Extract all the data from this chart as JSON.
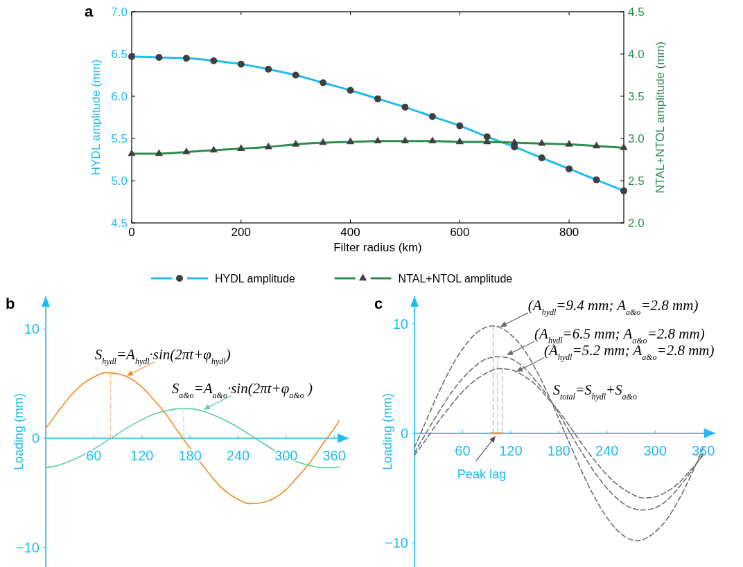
{
  "chart_data": [
    {
      "type": "line",
      "title": "a",
      "xlabel": "Filter radius (km)",
      "ylabel": "HYDL amplitude (mm)",
      "y2label": "NTAL+NTOL amplitude (mm)",
      "x": [
        0,
        50,
        100,
        150,
        200,
        250,
        300,
        350,
        400,
        450,
        500,
        550,
        600,
        650,
        700,
        750,
        800,
        850,
        900
      ],
      "xlim": [
        0,
        900
      ],
      "xticks": [
        0,
        200,
        400,
        600,
        800
      ],
      "ylim": [
        4.5,
        7
      ],
      "yticks": [
        4.5,
        {
          "value": 5,
          "label": "5.0"
        },
        5.5,
        {
          "value": 6,
          "label": "6.0"
        },
        6.5,
        {
          "value": 7,
          "label": "7.0"
        }
      ],
      "y2lim": [
        2,
        4.5
      ],
      "y2ticks": [
        {
          "value": 2,
          "label": "2.0"
        },
        2.5,
        {
          "value": 3,
          "label": "3.0"
        },
        3.5,
        {
          "value": 4,
          "label": "4.0"
        },
        4.5
      ],
      "legend": "bottom",
      "series": [
        {
          "name": "HYDL amplitude",
          "color": "#1ebcf0",
          "marker": "circle",
          "values": [
            6.47,
            6.46,
            6.45,
            6.42,
            6.38,
            6.32,
            6.25,
            6.16,
            6.07,
            5.97,
            5.87,
            5.76,
            5.65,
            5.52,
            5.4,
            5.27,
            5.14,
            5.01,
            4.88
          ]
        },
        {
          "name": "NTAL+NTOL amplitude",
          "color": "#2e8b4f",
          "marker": "triangle",
          "axis": "y2",
          "values": [
            2.82,
            2.82,
            2.84,
            2.86,
            2.88,
            2.9,
            2.93,
            2.95,
            2.96,
            2.97,
            2.97,
            2.97,
            2.96,
            2.96,
            2.95,
            2.94,
            2.93,
            2.91,
            2.89
          ]
        }
      ]
    },
    {
      "type": "line",
      "title": "b",
      "ylabel": "Loading (mm)",
      "xlim": [
        0,
        378
      ],
      "xticks": [
        60,
        120,
        180,
        240,
        300,
        360
      ],
      "ylim": [
        -11.8,
        13
      ],
      "yticks": [
        {
          "value": -10,
          "label": "−10"
        },
        0,
        10
      ],
      "series": [
        {
          "color": "#f5891f",
          "x": [
            0,
            15,
            30,
            45,
            60,
            75,
            90,
            105,
            120,
            135,
            150,
            165,
            180,
            195,
            210,
            225,
            240,
            255,
            270,
            285,
            300,
            315,
            330,
            345,
            360,
            366
          ],
          "values": [
            0.9,
            2.4,
            3.8,
            4.9,
            5.6,
            6.0,
            5.9,
            5.5,
            4.7,
            3.5,
            2.2,
            0.6,
            -0.9,
            -2.4,
            -3.8,
            -4.9,
            -5.6,
            -6.0,
            -5.9,
            -5.5,
            -4.7,
            -3.5,
            -2.2,
            -0.6,
            0.9,
            1.6
          ]
        },
        {
          "color": "#5fcfa0",
          "x": [
            0,
            15,
            30,
            45,
            60,
            75,
            90,
            105,
            120,
            135,
            150,
            165,
            180,
            195,
            210,
            225,
            240,
            255,
            270,
            285,
            300,
            315,
            330,
            345,
            360,
            366
          ],
          "values": [
            -2.7,
            -2.5,
            -2.1,
            -1.6,
            -1.0,
            -0.3,
            0.4,
            1.1,
            1.7,
            2.2,
            2.5,
            2.7,
            2.7,
            2.5,
            2.1,
            1.6,
            1.0,
            0.3,
            -0.4,
            -1.1,
            -1.7,
            -2.2,
            -2.5,
            -2.7,
            -2.7,
            -2.6
          ]
        },
        {
          "color": "#f8b878",
          "line_style": "dashed",
          "x": [
            81,
            81
          ],
          "values": [
            0,
            6.0
          ]
        },
        {
          "color": "#a8e0c8",
          "line_style": "dashed",
          "x": [
            172,
            172
          ],
          "values": [
            0,
            2.7
          ]
        }
      ],
      "annotations": [
        {
          "text": "S$_{hydl}$=A$_{hydl}$·sin(2πt+φ$_{hydl}$)",
          "x": 101,
          "y": 5.6
        },
        {
          "text": "S$_{a&o}$=A$_{a&o}$·sin(2πt+φ$_{a&o}$ )",
          "x": 197,
          "y": 2.5
        }
      ]
    },
    {
      "type": "line",
      "title": "c",
      "ylabel": "Loading (mm)",
      "xlim": [
        0,
        375
      ],
      "xticks": [
        60,
        120,
        180,
        240,
        300,
        360
      ],
      "ylim": [
        -12.2,
        12.5
      ],
      "yticks": [
        {
          "value": -10,
          "label": "−10"
        },
        0,
        10
      ],
      "line_style": "dashed",
      "series": [
        {
          "color": "#6e6e6e",
          "x": [
            0,
            15,
            30,
            45,
            60,
            75,
            90,
            98,
            105,
            120,
            135,
            150,
            165,
            180,
            195,
            210,
            225,
            240,
            255,
            270,
            278,
            285,
            300,
            315,
            330,
            345,
            360
          ],
          "values": [
            -1.3,
            1.2,
            3.7,
            5.9,
            7.7,
            9.0,
            9.7,
            9.8,
            9.7,
            9.0,
            7.8,
            6.0,
            3.8,
            1.3,
            -1.2,
            -3.7,
            -5.9,
            -7.7,
            -9.0,
            -9.7,
            -9.8,
            -9.7,
            -9.0,
            -7.8,
            -6.0,
            -3.8,
            -1.3
          ]
        },
        {
          "color": "#6e6e6e",
          "x": [
            0,
            15,
            30,
            45,
            60,
            75,
            90,
            105,
            120,
            135,
            150,
            165,
            180,
            195,
            210,
            225,
            240,
            255,
            270,
            285,
            300,
            315,
            330,
            345,
            360
          ],
          "values": [
            -1.8,
            0.1,
            1.9,
            3.6,
            5.0,
            6.1,
            6.8,
            7.0,
            6.8,
            6.1,
            4.9,
            3.5,
            1.8,
            -0.1,
            -1.9,
            -3.6,
            -5.0,
            -6.1,
            -6.8,
            -7.0,
            -6.8,
            -6.1,
            -4.9,
            -3.5,
            -1.8
          ]
        },
        {
          "color": "#6e6e6e",
          "x": [
            0,
            15,
            30,
            45,
            60,
            75,
            90,
            105,
            120,
            135,
            150,
            165,
            180,
            195,
            210,
            225,
            240,
            255,
            270,
            285,
            300,
            315,
            330,
            345,
            360
          ],
          "values": [
            -2.0,
            -0.5,
            1.1,
            2.5,
            3.8,
            4.8,
            5.5,
            5.9,
            5.8,
            5.3,
            4.5,
            3.3,
            2.0,
            0.5,
            -1.1,
            -2.5,
            -3.8,
            -4.8,
            -5.5,
            -5.9,
            -5.8,
            -5.3,
            -4.5,
            -3.3,
            -2.0
          ]
        },
        {
          "color": "#a0a0a0",
          "x": [
            98,
            98
          ],
          "values": [
            0,
            9.8
          ]
        },
        {
          "color": "#a0a0a0",
          "x": [
            104,
            104
          ],
          "values": [
            0,
            7.0
          ]
        },
        {
          "color": "#a0a0a0",
          "x": [
            110,
            110
          ],
          "values": [
            0,
            5.9
          ]
        },
        {
          "color": "#f4956a",
          "line_style": "solid",
          "x": [
            95,
            110
          ],
          "values": [
            0,
            0
          ]
        }
      ],
      "annotations": [
        {
          "text": "(A$_{hydl}$=9.4 mm; A$_{a&o}$=2.8 mm)",
          "x": 107,
          "y": 9.6
        },
        {
          "text": "(A$_{hydl}$=6.5 mm; A$_{a&o}$=2.8 mm)",
          "x": 115,
          "y": 7.0
        },
        {
          "text": "(A$_{hydl}$=5.2 mm; A$_{a&o}$=2.8 mm)",
          "x": 127,
          "y": 5.5
        },
        "S$_{total}$=S$_{hydl}$+S$_{a&o}$",
        {
          "text": "Peak lag",
          "x": 101,
          "y": 0
        }
      ]
    }
  ]
}
